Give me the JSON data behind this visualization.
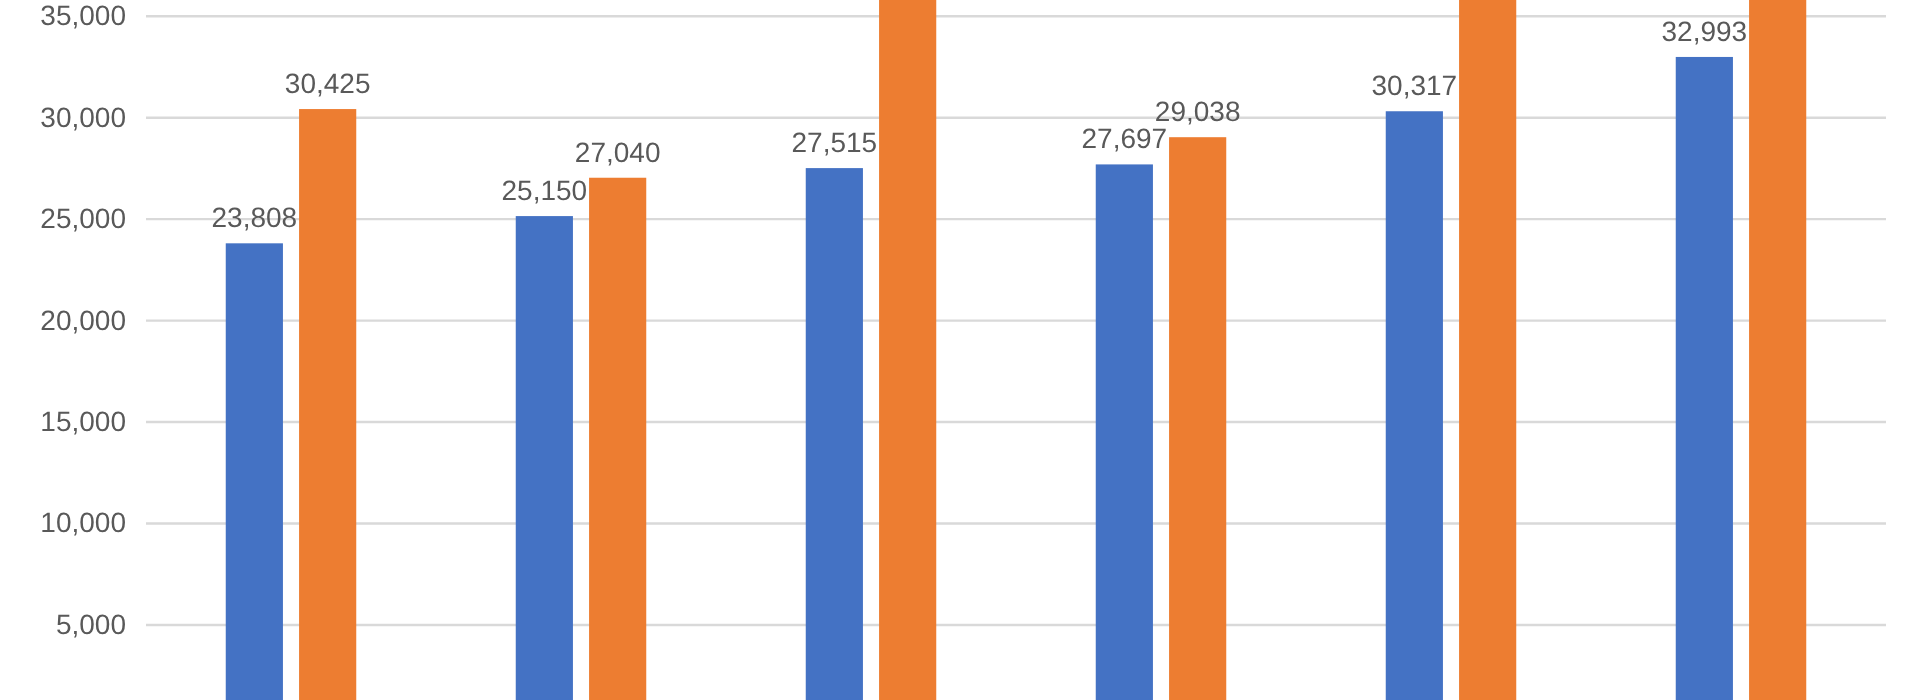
{
  "chart_data": {
    "type": "bar",
    "categories": [
      null,
      null,
      null,
      null,
      null,
      null
    ],
    "series": [
      {
        "color": "#4472c4",
        "values": [
          23808,
          25150,
          27515,
          27697,
          30317,
          32993
        ],
        "value_labels": [
          "23,808",
          "25,150",
          "27,515",
          "27,697",
          "30,317",
          "32,993"
        ]
      },
      {
        "color": "#ed7d31",
        "values": [
          30425,
          27040,
          35800,
          29038,
          35800,
          35800
        ],
        "value_labels": [
          "30,425",
          "27,040",
          null,
          "29,038",
          null,
          null
        ]
      }
    ],
    "ylim": [
      1300,
      35800
    ],
    "yticks": [
      {
        "value": 5000,
        "label": "5,000"
      },
      {
        "value": 10000,
        "label": "10,000"
      },
      {
        "value": 15000,
        "label": "15,000"
      },
      {
        "value": 20000,
        "label": "20,000"
      },
      {
        "value": 25000,
        "label": "25,000"
      },
      {
        "value": 30000,
        "label": "30,000"
      },
      {
        "value": 35000,
        "label": "35,000"
      }
    ],
    "grid": "y"
  }
}
